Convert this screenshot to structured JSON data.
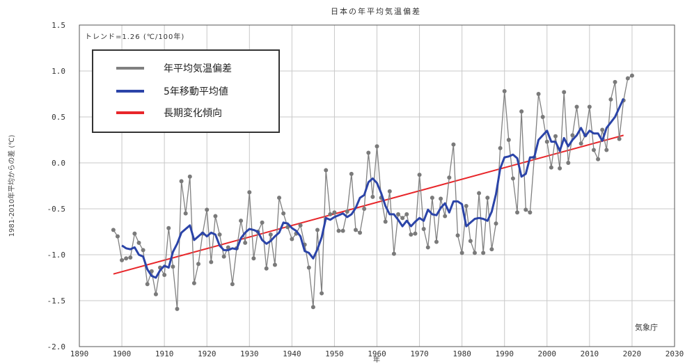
{
  "chart_data": {
    "type": "line",
    "title": "日本の年平均気温偏差",
    "xlabel": "年",
    "ylabel": "1981-2010年平均からの差 (℃)",
    "xlim": [
      1890,
      2030
    ],
    "ylim": [
      -2.0,
      1.5
    ],
    "xticks": [
      1890,
      1900,
      1910,
      1920,
      1930,
      1940,
      1950,
      1960,
      1970,
      1980,
      1990,
      2000,
      2010,
      2020,
      2030
    ],
    "yticks": [
      1.5,
      1.0,
      0.5,
      0.0,
      -0.5,
      -1.0,
      -1.5,
      -2.0
    ],
    "ytick_labels": [
      "1.5",
      "1.0",
      "0.5",
      "0.0",
      "-0.5",
      "-1.0",
      "-1.5",
      "-2.0"
    ],
    "grid": true,
    "trend_text": "トレンド=1.26 (℃/100年)",
    "source_text": "気象庁",
    "legend": {
      "placement": "top-left",
      "items": [
        {
          "label": "年平均気温偏差",
          "color": "#808080"
        },
        {
          "label": "5年移動平均値",
          "color": "#2b44a8"
        },
        {
          "label": "長期変化傾向",
          "color": "#e8262a"
        }
      ]
    },
    "series": [
      {
        "name": "年平均気温偏差",
        "color": "#808080",
        "x": [
          1898,
          1899,
          1900,
          1901,
          1902,
          1903,
          1904,
          1905,
          1906,
          1907,
          1908,
          1909,
          1910,
          1911,
          1912,
          1913,
          1914,
          1915,
          1916,
          1917,
          1918,
          1919,
          1920,
          1921,
          1922,
          1923,
          1924,
          1925,
          1926,
          1927,
          1928,
          1929,
          1930,
          1931,
          1932,
          1933,
          1934,
          1935,
          1936,
          1937,
          1938,
          1939,
          1940,
          1941,
          1942,
          1943,
          1944,
          1945,
          1946,
          1947,
          1948,
          1949,
          1950,
          1951,
          1952,
          1953,
          1954,
          1955,
          1956,
          1957,
          1958,
          1959,
          1960,
          1961,
          1962,
          1963,
          1964,
          1965,
          1966,
          1967,
          1968,
          1969,
          1970,
          1971,
          1972,
          1973,
          1974,
          1975,
          1976,
          1977,
          1978,
          1979,
          1980,
          1981,
          1982,
          1983,
          1984,
          1985,
          1986,
          1987,
          1988,
          1989,
          1990,
          1991,
          1992,
          1993,
          1994,
          1995,
          1996,
          1997,
          1998,
          1999,
          2000,
          2001,
          2002,
          2003,
          2004,
          2005,
          2006,
          2007,
          2008,
          2009,
          2010,
          2011,
          2012,
          2013,
          2014,
          2015,
          2016,
          2017,
          2018,
          2019,
          2020
        ],
        "y": [
          -0.73,
          -0.8,
          -1.06,
          -1.04,
          -1.03,
          -0.77,
          -0.87,
          -0.95,
          -1.32,
          -1.18,
          -1.43,
          -1.14,
          -1.22,
          -0.71,
          -1.13,
          -1.59,
          -0.2,
          -0.55,
          -0.15,
          -1.31,
          -1.1,
          -0.77,
          -0.51,
          -1.08,
          -0.58,
          -0.78,
          -1.02,
          -0.92,
          -1.32,
          -0.93,
          -0.63,
          -0.87,
          -0.32,
          -1.04,
          -0.75,
          -0.65,
          -1.15,
          -0.78,
          -1.11,
          -0.38,
          -0.55,
          -0.7,
          -0.83,
          -0.77,
          -0.68,
          -0.89,
          -1.14,
          -1.57,
          -0.73,
          -1.42,
          -0.08,
          -0.56,
          -0.54,
          -0.74,
          -0.74,
          -0.53,
          -0.12,
          -0.73,
          -0.76,
          -0.5,
          0.11,
          -0.37,
          0.18,
          -0.38,
          -0.64,
          -0.31,
          -0.99,
          -0.56,
          -0.6,
          -0.56,
          -0.78,
          -0.77,
          -0.13,
          -0.72,
          -0.92,
          -0.38,
          -0.86,
          -0.39,
          -0.58,
          -0.16,
          0.2,
          -0.79,
          -0.98,
          -0.47,
          -0.85,
          -0.98,
          -0.33,
          -0.98,
          -0.38,
          -0.94,
          -0.66,
          0.16,
          0.78,
          0.25,
          -0.17,
          -0.54,
          0.56,
          -0.51,
          -0.54,
          0.06,
          0.75,
          0.5,
          0.23,
          -0.05,
          0.29,
          -0.06,
          0.77,
          0.0,
          0.3,
          0.61,
          0.21,
          0.3,
          0.61,
          0.14,
          0.04,
          0.36,
          0.14,
          0.69,
          0.88,
          0.26,
          0.68,
          0.92,
          0.95
        ]
      },
      {
        "name": "5年移動平均値",
        "color": "#2b44a8",
        "x": [
          1900,
          1901,
          1902,
          1903,
          1904,
          1905,
          1906,
          1907,
          1908,
          1909,
          1910,
          1911,
          1912,
          1913,
          1914,
          1915,
          1916,
          1917,
          1918,
          1919,
          1920,
          1921,
          1922,
          1923,
          1924,
          1925,
          1926,
          1927,
          1928,
          1929,
          1930,
          1931,
          1932,
          1933,
          1934,
          1935,
          1936,
          1937,
          1938,
          1939,
          1940,
          1941,
          1942,
          1943,
          1944,
          1945,
          1946,
          1947,
          1948,
          1949,
          1950,
          1951,
          1952,
          1953,
          1954,
          1955,
          1956,
          1957,
          1958,
          1959,
          1960,
          1961,
          1962,
          1963,
          1964,
          1965,
          1966,
          1967,
          1968,
          1969,
          1970,
          1971,
          1972,
          1973,
          1974,
          1975,
          1976,
          1977,
          1978,
          1979,
          1980,
          1981,
          1982,
          1983,
          1984,
          1985,
          1986,
          1987,
          1988,
          1989,
          1990,
          1991,
          1992,
          1993,
          1994,
          1995,
          1996,
          1997,
          1998,
          1999,
          2000,
          2001,
          2002,
          2003,
          2004,
          2005,
          2006,
          2007,
          2008,
          2009,
          2010,
          2011,
          2012,
          2013,
          2014,
          2015,
          2016,
          2017,
          2018
        ],
        "y": [
          -0.9,
          -0.93,
          -0.94,
          -0.92,
          -1.0,
          -1.02,
          -1.16,
          -1.23,
          -1.25,
          -1.17,
          -1.12,
          -1.14,
          -0.97,
          -0.88,
          -0.76,
          -0.72,
          -0.68,
          -0.84,
          -0.8,
          -0.76,
          -0.8,
          -0.76,
          -0.78,
          -0.9,
          -0.95,
          -0.95,
          -0.93,
          -0.94,
          -0.82,
          -0.76,
          -0.72,
          -0.73,
          -0.75,
          -0.84,
          -0.88,
          -0.85,
          -0.8,
          -0.76,
          -0.65,
          -0.66,
          -0.71,
          -0.74,
          -0.8,
          -0.96,
          -0.98,
          -1.04,
          -0.94,
          -0.81,
          -0.6,
          -0.62,
          -0.59,
          -0.57,
          -0.55,
          -0.59,
          -0.56,
          -0.49,
          -0.38,
          -0.35,
          -0.21,
          -0.17,
          -0.22,
          -0.33,
          -0.47,
          -0.56,
          -0.56,
          -0.62,
          -0.69,
          -0.63,
          -0.69,
          -0.64,
          -0.6,
          -0.63,
          -0.51,
          -0.56,
          -0.57,
          -0.49,
          -0.44,
          -0.54,
          -0.42,
          -0.42,
          -0.45,
          -0.69,
          -0.65,
          -0.61,
          -0.6,
          -0.61,
          -0.63,
          -0.53,
          -0.34,
          -0.06,
          0.06,
          0.07,
          0.09,
          0.05,
          -0.15,
          -0.12,
          0.06,
          0.06,
          0.25,
          0.3,
          0.35,
          0.23,
          0.23,
          0.13,
          0.27,
          0.18,
          0.25,
          0.3,
          0.38,
          0.29,
          0.35,
          0.32,
          0.32,
          0.24,
          0.38,
          0.44,
          0.5,
          0.6,
          0.7
        ]
      },
      {
        "name": "長期変化傾向",
        "color": "#e8262a",
        "x": [
          1898,
          2018
        ],
        "y": [
          -1.21,
          0.3
        ]
      }
    ]
  }
}
